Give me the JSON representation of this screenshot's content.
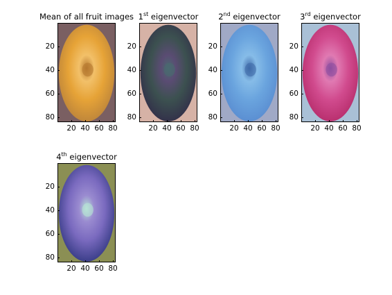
{
  "figure": {
    "panels": [
      {
        "title": {
          "main": "Mean of all fruit images",
          "sup": "",
          "suffix": ""
        },
        "palette": {
          "bg": "#7a5f62",
          "outer": "#c0873a",
          "mid": "#e6a337",
          "core": "#b5782f",
          "sheen": "#f2c069"
        }
      },
      {
        "title": {
          "main": "1",
          "sup": "st",
          "suffix": " eigenvector"
        },
        "palette": {
          "bg": "#d6b2a6",
          "outer": "#33324a",
          "mid": "#3c5150",
          "core": "#4a6a70",
          "sheen": "#5a4c73"
        }
      },
      {
        "title": {
          "main": "2",
          "sup": "nd",
          "suffix": " eigenvector"
        },
        "palette": {
          "bg": "#a0a9c6",
          "outer": "#5b8fd2",
          "mid": "#6aa4de",
          "core": "#3f6aa8",
          "sheen": "#86bce8"
        }
      },
      {
        "title": {
          "main": "3",
          "sup": "rd",
          "suffix": " eigenvector"
        },
        "palette": {
          "bg": "#a9c0d6",
          "outer": "#b9306f",
          "mid": "#d14b8e",
          "core": "#8e4fa0",
          "sheen": "#e07ab2"
        }
      },
      {
        "title": {
          "main": "4",
          "sup": "th",
          "suffix": " eigenvector"
        },
        "palette": {
          "bg": "#8b8f54",
          "outer": "#3c3f8a",
          "mid": "#7a6abf",
          "core": "#b7e4d6",
          "sheen": "#9a8bd0"
        }
      }
    ],
    "axis": {
      "yticks": [
        "20",
        "40",
        "60",
        "80"
      ],
      "xticks": [
        "20",
        "40",
        "60",
        "80"
      ],
      "xlim": [
        0,
        84
      ],
      "ylim": [
        0,
        84
      ]
    }
  }
}
